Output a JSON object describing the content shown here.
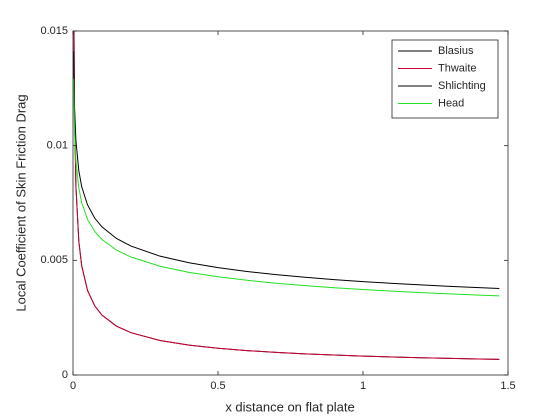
{
  "chart_data": {
    "type": "line",
    "xlabel": "x distance on flat plate",
    "ylabel": "Local Coefficient of Skin Friction Drag",
    "x": [
      0.002,
      0.005,
      0.01,
      0.02,
      0.03,
      0.05,
      0.075,
      0.1,
      0.15,
      0.2,
      0.3,
      0.4,
      0.5,
      0.6,
      0.7,
      0.8,
      0.9,
      1.0,
      1.1,
      1.2,
      1.3,
      1.4,
      1.47
    ],
    "series": [
      {
        "name": "Blasius",
        "color": "#000000",
        "values": [
          0.01845,
          0.01167,
          0.00825,
          0.005834,
          0.004763,
          0.00369,
          0.003012,
          0.002609,
          0.00213,
          0.001845,
          0.001506,
          0.001304,
          0.001167,
          0.001065,
          0.000986,
          0.000922,
          0.00087,
          0.000825,
          0.000787,
          0.000753,
          0.000724,
          0.000697,
          0.00068
        ]
      },
      {
        "name": "Thwaite",
        "color": "#cc0033",
        "values": [
          0.01845,
          0.01167,
          0.00825,
          0.005834,
          0.004763,
          0.00369,
          0.003012,
          0.002609,
          0.00213,
          0.001845,
          0.001506,
          0.001304,
          0.001167,
          0.001065,
          0.000986,
          0.000922,
          0.00087,
          0.000825,
          0.000787,
          0.000753,
          0.000724,
          0.000697,
          0.00068
        ]
      },
      {
        "name": "Shlichting",
        "color": "#000000",
        "values": [
          0.01412,
          0.01175,
          0.01023,
          0.00891,
          0.008213,
          0.007419,
          0.00684,
          0.006457,
          0.005952,
          0.005622,
          0.005182,
          0.004893,
          0.004681,
          0.004514,
          0.004375,
          0.00426,
          0.004161,
          0.004074,
          0.003997,
          0.003928,
          0.003866,
          0.003809,
          0.003772
        ]
      },
      {
        "name": "Head",
        "color": "#22e022",
        "values": [
          0.01292,
          0.01075,
          0.00936,
          0.008153,
          0.007515,
          0.006788,
          0.006259,
          0.005908,
          0.005446,
          0.005144,
          0.004742,
          0.004477,
          0.004283,
          0.00413,
          0.004003,
          0.003898,
          0.003807,
          0.003728,
          0.003657,
          0.003594,
          0.003537,
          0.003485,
          0.003451
        ]
      }
    ],
    "xlim": [
      0,
      1.5
    ],
    "xticks": [
      0,
      0.5,
      1,
      1.5
    ],
    "ylim": [
      0,
      0.015
    ],
    "yticks": [
      0,
      0.005,
      0.01,
      0.015
    ],
    "grid": false,
    "legend": "northeast"
  }
}
